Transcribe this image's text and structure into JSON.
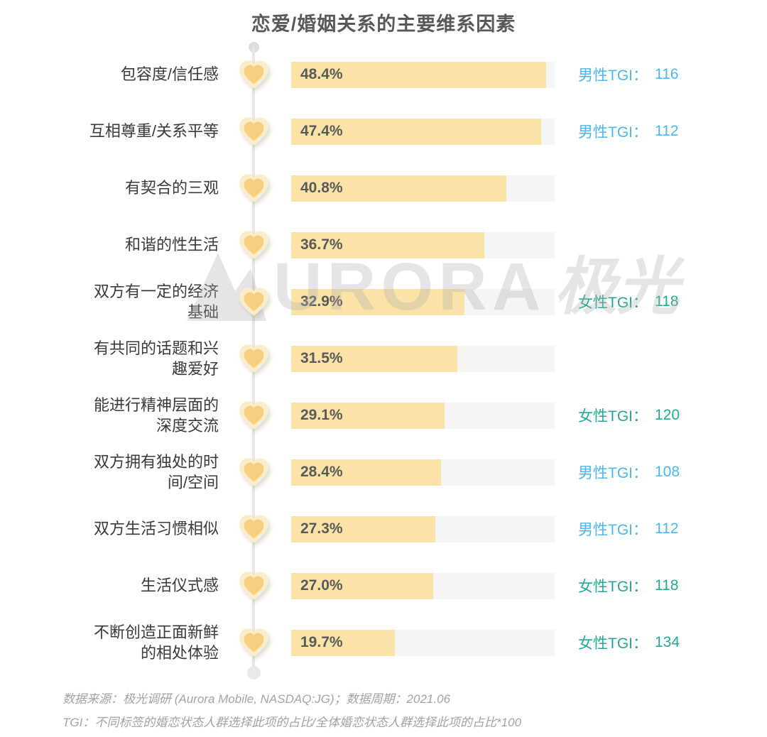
{
  "chart_data": {
    "type": "bar",
    "orientation": "horizontal",
    "title": "恋爱/婚姻关系的主要维系因素",
    "unit": "%",
    "xlim": [
      0,
      50
    ],
    "grid": false,
    "bar_color": "#fbe3a7",
    "track_color": "#f5f5f6",
    "tgi_colors": {
      "male": "#4eb5f5",
      "female": "#25a794"
    },
    "categories": [
      "包容度/信任感",
      "互相尊重/关系平等",
      "有契合的三观",
      "和谐的性生活",
      "双方有一定的经济基础",
      "有共同的话题和兴趣爱好",
      "能进行精神层面的深度交流",
      "双方拥有独处的时间/空间",
      "双方生活习惯相似",
      "生活仪式感",
      "不断创造正面新鲜的相处体验"
    ],
    "values": [
      48.4,
      47.4,
      40.8,
      36.7,
      32.9,
      31.5,
      29.1,
      28.4,
      27.3,
      27.0,
      19.7
    ],
    "rows": [
      {
        "label": "包容度/信任感",
        "value": 48.4,
        "value_label": "48.4%",
        "tgi_label": "男性TGI：",
        "tgi_value": "116",
        "tgi_group_key": "male"
      },
      {
        "label": "互相尊重/关系平等",
        "value": 47.4,
        "value_label": "47.4%",
        "tgi_label": "男性TGI：",
        "tgi_value": "112",
        "tgi_group_key": "male"
      },
      {
        "label": "有契合的三观",
        "value": 40.8,
        "value_label": "40.8%",
        "tgi_label": "",
        "tgi_value": "",
        "tgi_group_key": ""
      },
      {
        "label": "和谐的性生活",
        "value": 36.7,
        "value_label": "36.7%",
        "tgi_label": "",
        "tgi_value": "",
        "tgi_group_key": ""
      },
      {
        "label": "双方有一定的经济\n基础",
        "value": 32.9,
        "value_label": "32.9%",
        "tgi_label": "女性TGI：",
        "tgi_value": "118",
        "tgi_group_key": "female"
      },
      {
        "label": "有共同的话题和兴\n趣爱好",
        "value": 31.5,
        "value_label": "31.5%",
        "tgi_label": "",
        "tgi_value": "",
        "tgi_group_key": ""
      },
      {
        "label": "能进行精神层面的\n深度交流",
        "value": 29.1,
        "value_label": "29.1%",
        "tgi_label": "女性TGI：",
        "tgi_value": "120",
        "tgi_group_key": "female"
      },
      {
        "label": "双方拥有独处的时\n间/空间",
        "value": 28.4,
        "value_label": "28.4%",
        "tgi_label": "男性TGI：",
        "tgi_value": "108",
        "tgi_group_key": "male"
      },
      {
        "label": "双方生活习惯相似",
        "value": 27.3,
        "value_label": "27.3%",
        "tgi_label": "男性TGI：",
        "tgi_value": "112",
        "tgi_group_key": "male"
      },
      {
        "label": "生活仪式感",
        "value": 27.0,
        "value_label": "27.0%",
        "tgi_label": "女性TGI：",
        "tgi_value": "118",
        "tgi_group_key": "female"
      },
      {
        "label": "不断创造正面新鲜\n的相处体验",
        "value": 19.7,
        "value_label": "19.7%",
        "tgi_label": "女性TGI：",
        "tgi_value": "134",
        "tgi_group_key": "female"
      }
    ]
  },
  "watermark": {
    "brand_en": "URORA",
    "brand_cn": "极光"
  },
  "footer": {
    "line1": "数据来源：极光调研 (Aurora Mobile, NASDAQ:JG)；数据周期：2021.06",
    "line2": "TGI：不同标签的婚恋状态人群选择此项的占比/全体婚恋状态人群选择此项的占比*100"
  },
  "heart_colors": {
    "outer": "#faedcb",
    "inner": "#f8cf80"
  }
}
